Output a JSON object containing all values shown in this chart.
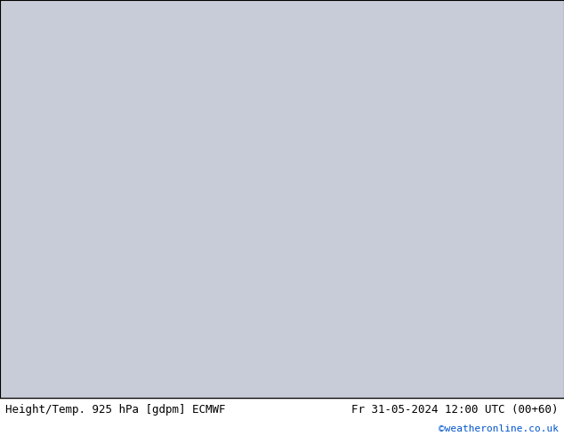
{
  "title_left": "Height/Temp. 925 hPa [gdpm] ECMWF",
  "title_right": "Fr 31-05-2024 12:00 UTC (00+60)",
  "credit": "©weatheronline.co.uk",
  "ocean_color": "#c8ccd8",
  "land_color": "#b8e890",
  "footer_bg": "#ffffff",
  "footer_text_color": "#000000",
  "credit_color": "#0055cc",
  "font_size_footer": 9,
  "font_size_credit": 8,
  "map_extent": [
    90,
    185,
    -58,
    12
  ]
}
